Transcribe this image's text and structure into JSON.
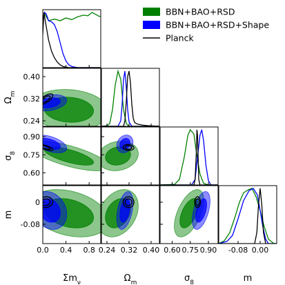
{
  "chart_data": {
    "type": "triangle",
    "parameters": [
      {
        "key": "mnu",
        "label": "Σm",
        "sub": "ν",
        "lim": [
          0,
          1.0
        ],
        "ticks": [
          0.0,
          0.4,
          0.8
        ],
        "ticklabels": [
          "0.0",
          "0.4",
          "0.8"
        ]
      },
      {
        "key": "om",
        "label": "Ω",
        "sub": "m",
        "lim": [
          0.22,
          0.43
        ],
        "ticks": [
          0.24,
          0.32,
          0.4
        ],
        "ticklabels": [
          "0.24",
          "0.32",
          "0.40"
        ]
      },
      {
        "key": "s8",
        "label": "σ",
        "sub": "8",
        "lim": [
          0.5,
          0.98
        ],
        "ticks": [
          0.6,
          0.75,
          0.9
        ],
        "ticklabels": [
          "0.60",
          "0.75",
          "0.90"
        ]
      },
      {
        "key": "m",
        "label": "m",
        "sub": "",
        "lim": [
          -0.15,
          0.06
        ],
        "ticks": [
          -0.08,
          0.0
        ],
        "ticklabels": [
          "-0.08",
          "0.00"
        ],
        "yticks": [
          -0.08,
          0.0
        ],
        "yticklabels": [
          "-0.08",
          "0"
        ]
      }
    ],
    "legend_position": "top-right",
    "series": [
      {
        "name": "BBN+BAO+RSD",
        "color": "#008000",
        "style": "filled",
        "mean": {
          "mnu": 0.45,
          "om": 0.28,
          "s8": 0.74,
          "m": -0.04
        },
        "sigma": {
          "mnu": 0.28,
          "om": 0.03,
          "s8": 0.05,
          "m": 0.035
        },
        "corr": {
          "mnu-om": -0.1,
          "mnu-s8": -0.7,
          "mnu-m": -0.3,
          "om-s8": 0.15,
          "om-m": 0.3,
          "s8-m": 0.55
        },
        "marginals": {
          "mnu": [
            [
              0.0,
              0.9
            ],
            [
              0.03,
              0.98
            ],
            [
              0.1,
              0.85
            ],
            [
              0.2,
              0.88
            ],
            [
              0.3,
              0.85
            ],
            [
              0.4,
              0.9
            ],
            [
              0.5,
              0.87
            ],
            [
              0.6,
              0.92
            ],
            [
              0.7,
              0.95
            ],
            [
              0.78,
              0.94
            ],
            [
              0.85,
              1.0
            ],
            [
              0.92,
              0.96
            ],
            [
              0.97,
              0.93
            ],
            [
              1.0,
              0.93
            ]
          ],
          "om": [
            [
              0.22,
              0
            ],
            [
              0.24,
              0.01
            ],
            [
              0.25,
              0.05
            ],
            [
              0.26,
              0.3
            ],
            [
              0.27,
              0.75
            ],
            [
              0.28,
              1.0
            ],
            [
              0.29,
              0.85
            ],
            [
              0.3,
              0.3
            ],
            [
              0.31,
              0.05
            ],
            [
              0.32,
              0
            ],
            [
              0.43,
              0
            ]
          ],
          "s8": [
            [
              0.5,
              0
            ],
            [
              0.62,
              0.01
            ],
            [
              0.66,
              0.1
            ],
            [
              0.7,
              0.5
            ],
            [
              0.73,
              0.9
            ],
            [
              0.75,
              1.0
            ],
            [
              0.78,
              0.92
            ],
            [
              0.8,
              0.6
            ],
            [
              0.83,
              0.2
            ],
            [
              0.86,
              0.03
            ],
            [
              0.9,
              0
            ],
            [
              0.98,
              0
            ]
          ],
          "m": [
            [
              -0.15,
              0
            ],
            [
              -0.13,
              0.05
            ],
            [
              -0.11,
              0.2
            ],
            [
              -0.09,
              0.5
            ],
            [
              -0.075,
              0.75
            ],
            [
              -0.06,
              0.92
            ],
            [
              -0.045,
              0.97
            ],
            [
              -0.03,
              1.0
            ],
            [
              -0.015,
              0.85
            ],
            [
              0.0,
              0.6
            ],
            [
              0.015,
              0.3
            ],
            [
              0.03,
              0.08
            ],
            [
              0.05,
              0
            ],
            [
              0.06,
              0
            ]
          ]
        }
      },
      {
        "name": "BBN+BAO+RSD+Shape",
        "color": "#0000ff",
        "style": "filled",
        "mean": {
          "mnu": 0.12,
          "om": 0.305,
          "s8": 0.84,
          "m": -0.03
        },
        "sigma": {
          "mnu": 0.12,
          "om": 0.012,
          "s8": 0.03,
          "m": 0.028
        },
        "corr": {
          "mnu-om": 0.3,
          "mnu-s8": -0.5,
          "mnu-m": -0.2,
          "om-s8": 0.2,
          "om-m": 0.4,
          "s8-m": 0.5
        },
        "marginals": {
          "mnu": [
            [
              0.0,
              0.8
            ],
            [
              0.03,
              1.0
            ],
            [
              0.06,
              0.97
            ],
            [
              0.1,
              0.85
            ],
            [
              0.15,
              0.83
            ],
            [
              0.2,
              0.78
            ],
            [
              0.25,
              0.65
            ],
            [
              0.3,
              0.45
            ],
            [
              0.35,
              0.25
            ],
            [
              0.4,
              0.12
            ],
            [
              0.45,
              0.05
            ],
            [
              0.5,
              0.02
            ],
            [
              0.6,
              0
            ],
            [
              1.0,
              0
            ]
          ],
          "om": [
            [
              0.22,
              0
            ],
            [
              0.28,
              0
            ],
            [
              0.29,
              0.1
            ],
            [
              0.295,
              0.4
            ],
            [
              0.3,
              0.85
            ],
            [
              0.305,
              1.0
            ],
            [
              0.31,
              0.7
            ],
            [
              0.315,
              0.3
            ],
            [
              0.32,
              0.08
            ],
            [
              0.33,
              0
            ],
            [
              0.43,
              0
            ]
          ],
          "s8": [
            [
              0.5,
              0
            ],
            [
              0.76,
              0
            ],
            [
              0.79,
              0.1
            ],
            [
              0.81,
              0.5
            ],
            [
              0.83,
              0.9
            ],
            [
              0.845,
              1.0
            ],
            [
              0.86,
              0.8
            ],
            [
              0.88,
              0.35
            ],
            [
              0.9,
              0.08
            ],
            [
              0.92,
              0
            ],
            [
              0.98,
              0
            ]
          ],
          "m": [
            [
              -0.15,
              0
            ],
            [
              -0.12,
              0.04
            ],
            [
              -0.1,
              0.15
            ],
            [
              -0.08,
              0.45
            ],
            [
              -0.06,
              0.78
            ],
            [
              -0.04,
              0.96
            ],
            [
              -0.025,
              1.0
            ],
            [
              -0.01,
              0.88
            ],
            [
              0.0,
              0.6
            ],
            [
              0.01,
              0.3
            ],
            [
              0.02,
              0.08
            ],
            [
              0.03,
              0
            ],
            [
              0.06,
              0
            ]
          ]
        }
      },
      {
        "name": "Planck",
        "color": "#000000",
        "style": "line",
        "mean": {
          "mnu": 0.05,
          "om": 0.318,
          "s8": 0.81,
          "m": 0.0
        },
        "sigma": {
          "mnu": 0.05,
          "om": 0.008,
          "s8": 0.01,
          "m": 0.008
        },
        "corr": {
          "mnu-om": 0.7,
          "mnu-s8": -0.7,
          "mnu-m": 0.1,
          "om-s8": -0.1,
          "om-m": 0.0,
          "s8-m": 0.0
        },
        "marginals": {
          "mnu": [
            [
              0.0,
              0.6
            ],
            [
              0.02,
              1.0
            ],
            [
              0.05,
              0.8
            ],
            [
              0.1,
              0.5
            ],
            [
              0.15,
              0.3
            ],
            [
              0.2,
              0.18
            ],
            [
              0.25,
              0.1
            ],
            [
              0.3,
              0.05
            ],
            [
              0.35,
              0.02
            ],
            [
              0.45,
              0
            ],
            [
              1.0,
              0
            ]
          ],
          "om": [
            [
              0.22,
              0
            ],
            [
              0.3,
              0
            ],
            [
              0.305,
              0.1
            ],
            [
              0.31,
              0.45
            ],
            [
              0.315,
              0.9
            ],
            [
              0.32,
              1.0
            ],
            [
              0.325,
              0.8
            ],
            [
              0.33,
              0.4
            ],
            [
              0.335,
              0.15
            ],
            [
              0.34,
              0.07
            ],
            [
              0.35,
              0.04
            ],
            [
              0.37,
              0.02
            ],
            [
              0.39,
              0.01
            ],
            [
              0.43,
              0
            ]
          ],
          "s8": [
            [
              0.5,
              0
            ],
            [
              0.78,
              0
            ],
            [
              0.79,
              0.1
            ],
            [
              0.8,
              0.6
            ],
            [
              0.805,
              1.0
            ],
            [
              0.81,
              0.9
            ],
            [
              0.815,
              0.5
            ],
            [
              0.82,
              0.1
            ],
            [
              0.83,
              0
            ],
            [
              0.98,
              0
            ]
          ],
          "m": [
            [
              -0.15,
              0
            ],
            [
              -0.02,
              0
            ],
            [
              -0.012,
              0.2
            ],
            [
              -0.006,
              0.7
            ],
            [
              0.0,
              1.0
            ],
            [
              0.006,
              0.7
            ],
            [
              0.012,
              0.2
            ],
            [
              0.02,
              0
            ],
            [
              0.06,
              0
            ]
          ]
        }
      }
    ]
  }
}
